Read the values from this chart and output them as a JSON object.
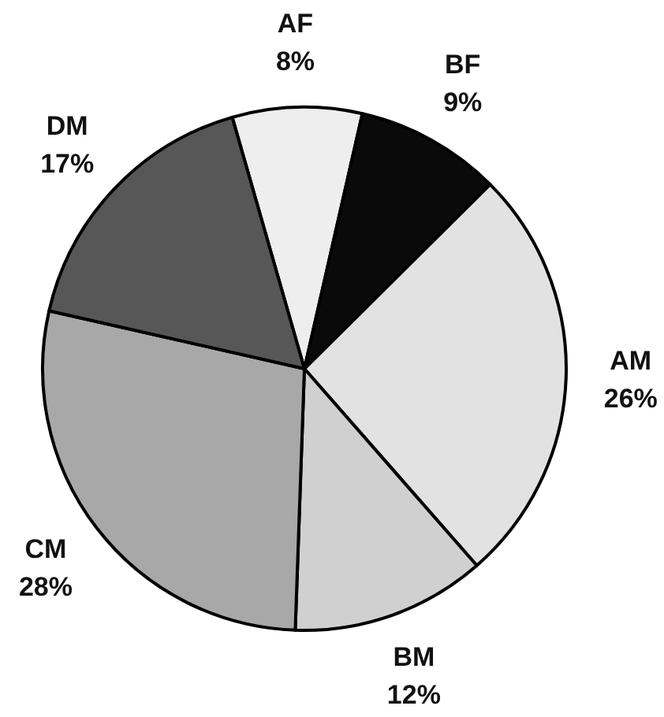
{
  "chart_data": {
    "type": "pie",
    "categories": [
      "AF",
      "BF",
      "AM",
      "BM",
      "CM",
      "DM"
    ],
    "values": [
      8,
      9,
      26,
      12,
      28,
      17
    ],
    "colors": [
      "#eeeeee",
      "#0a0a0a",
      "#e2e2e2",
      "#d0d0d0",
      "#a8a8a8",
      "#575757"
    ],
    "value_labels": [
      "8%",
      "9%",
      "26%",
      "12%",
      "28%",
      "17%"
    ]
  }
}
